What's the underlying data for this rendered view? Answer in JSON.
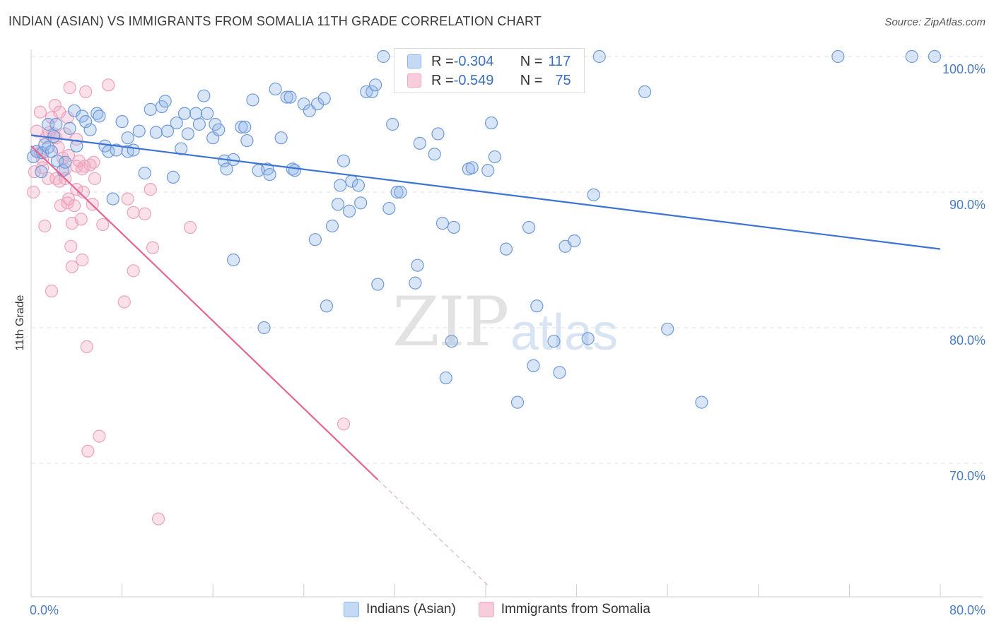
{
  "header": {
    "title": "INDIAN (ASIAN) VS IMMIGRANTS FROM SOMALIA 11TH GRADE CORRELATION CHART",
    "source": "Source: ZipAtlas.com"
  },
  "watermark": {
    "zip": "ZIP",
    "atlas": "atlas"
  },
  "legend": {
    "rows": [
      {
        "r_label": "R = ",
        "r_value": "-0.304",
        "n_label": "N = ",
        "n_value": "117",
        "color": "#8fb4e8"
      },
      {
        "r_label": "R = ",
        "r_value": "-0.549",
        "n_label": "N = ",
        "n_value": "75",
        "color": "#f2a8c1"
      }
    ]
  },
  "bottom_legend": {
    "series1": "Indians (Asian)",
    "series2": "Immigrants from Somalia"
  },
  "chart_data": {
    "type": "scatter",
    "ylabel": "11th Grade",
    "xlim": [
      0,
      80
    ],
    "ylim": [
      60,
      100
    ],
    "x_tick_labels": [
      "0.0%",
      "80.0%"
    ],
    "y_tick_labels": [
      "100.0%",
      "90.0%",
      "80.0%",
      "70.0%"
    ],
    "y_ticks": [
      100,
      90,
      80,
      70
    ],
    "grid": "horizontal dashed",
    "series": [
      {
        "name": "Indians (Asian)",
        "color": "#4a7fd4",
        "trend": {
          "x": [
            0,
            80
          ],
          "y": [
            94.2,
            85.8
          ]
        },
        "points": [
          [
            0.2,
            92.6
          ],
          [
            0.5,
            93.0
          ],
          [
            0.9,
            91.5
          ],
          [
            1.0,
            92.9
          ],
          [
            1.2,
            93.5
          ],
          [
            1.5,
            93.3
          ],
          [
            1.5,
            95.0
          ],
          [
            1.8,
            93.0
          ],
          [
            2.0,
            94.1
          ],
          [
            2.2,
            95.0
          ],
          [
            2.3,
            92.3
          ],
          [
            2.8,
            91.6
          ],
          [
            3.0,
            92.2
          ],
          [
            3.4,
            94.7
          ],
          [
            3.8,
            96.0
          ],
          [
            4.0,
            93.4
          ],
          [
            4.5,
            95.6
          ],
          [
            4.8,
            95.2
          ],
          [
            5.2,
            94.6
          ],
          [
            5.8,
            95.8
          ],
          [
            6.0,
            95.6
          ],
          [
            6.5,
            93.4
          ],
          [
            6.8,
            93.0
          ],
          [
            7.2,
            89.5
          ],
          [
            7.5,
            93.1
          ],
          [
            8.0,
            95.2
          ],
          [
            8.5,
            93.0
          ],
          [
            8.5,
            94.0
          ],
          [
            9.0,
            93.1
          ],
          [
            9.5,
            94.5
          ],
          [
            10.0,
            91.4
          ],
          [
            10.5,
            96.1
          ],
          [
            11.0,
            94.4
          ],
          [
            11.5,
            96.3
          ],
          [
            11.8,
            96.7
          ],
          [
            12.0,
            94.5
          ],
          [
            12.5,
            91.1
          ],
          [
            12.8,
            95.1
          ],
          [
            13.2,
            93.2
          ],
          [
            13.5,
            95.8
          ],
          [
            13.8,
            94.3
          ],
          [
            14.5,
            95.8
          ],
          [
            14.8,
            95.0
          ],
          [
            15.2,
            97.1
          ],
          [
            15.5,
            95.8
          ],
          [
            16.0,
            94.0
          ],
          [
            16.2,
            95.0
          ],
          [
            16.5,
            94.6
          ],
          [
            17.0,
            92.3
          ],
          [
            17.2,
            91.7
          ],
          [
            17.8,
            92.4
          ],
          [
            17.8,
            85.0
          ],
          [
            18.5,
            94.8
          ],
          [
            18.8,
            94.8
          ],
          [
            19.0,
            93.8
          ],
          [
            19.5,
            96.8
          ],
          [
            20.0,
            91.6
          ],
          [
            20.5,
            80.0
          ],
          [
            20.8,
            91.7
          ],
          [
            21.0,
            91.3
          ],
          [
            21.5,
            97.6
          ],
          [
            22.0,
            94.0
          ],
          [
            22.5,
            97.0
          ],
          [
            22.8,
            97.0
          ],
          [
            23.0,
            91.7
          ],
          [
            23.2,
            91.6
          ],
          [
            24.0,
            96.5
          ],
          [
            24.5,
            96.0
          ],
          [
            25.0,
            86.5
          ],
          [
            25.2,
            96.5
          ],
          [
            25.8,
            96.9
          ],
          [
            26.0,
            81.6
          ],
          [
            26.5,
            87.5
          ],
          [
            27.0,
            89.1
          ],
          [
            27.2,
            90.5
          ],
          [
            27.5,
            92.3
          ],
          [
            28.0,
            88.6
          ],
          [
            28.2,
            90.8
          ],
          [
            28.8,
            90.5
          ],
          [
            29.0,
            89.2
          ],
          [
            29.5,
            97.4
          ],
          [
            30.0,
            97.4
          ],
          [
            30.3,
            97.9
          ],
          [
            30.5,
            83.2
          ],
          [
            31.0,
            100.0
          ],
          [
            31.5,
            88.8
          ],
          [
            31.8,
            95.0
          ],
          [
            32.2,
            90.0
          ],
          [
            32.5,
            90.0
          ],
          [
            33.8,
            83.3
          ],
          [
            34.0,
            84.6
          ],
          [
            34.2,
            93.6
          ],
          [
            35.5,
            92.8
          ],
          [
            35.8,
            94.3
          ],
          [
            36.2,
            87.7
          ],
          [
            36.5,
            76.3
          ],
          [
            37.0,
            79.0
          ],
          [
            37.2,
            87.4
          ],
          [
            38.5,
            91.7
          ],
          [
            38.8,
            91.8
          ],
          [
            40.2,
            91.6
          ],
          [
            40.5,
            95.1
          ],
          [
            40.8,
            92.6
          ],
          [
            41.8,
            85.8
          ],
          [
            42.8,
            74.5
          ],
          [
            43.8,
            87.4
          ],
          [
            44.2,
            77.2
          ],
          [
            44.5,
            81.6
          ],
          [
            46.0,
            79.0
          ],
          [
            46.5,
            76.7
          ],
          [
            47.0,
            86.0
          ],
          [
            47.8,
            86.4
          ],
          [
            49.0,
            79.2
          ],
          [
            49.5,
            89.8
          ],
          [
            50.0,
            100.0
          ],
          [
            54.0,
            97.4
          ],
          [
            56.0,
            79.9
          ],
          [
            59.0,
            74.5
          ],
          [
            71.0,
            100.0
          ],
          [
            77.5,
            100.0
          ],
          [
            79.5,
            100.0
          ]
        ]
      },
      {
        "name": "Immigrants from Somalia",
        "color": "#e46592",
        "trend": {
          "x": [
            0,
            30.5
          ],
          "y": [
            93.4,
            68.8
          ]
        },
        "trend_dashed": {
          "x": [
            30.5,
            40.2
          ],
          "y": [
            68.8,
            61.0
          ]
        },
        "points": [
          [
            0.2,
            90.0
          ],
          [
            0.3,
            91.5
          ],
          [
            0.5,
            94.5
          ],
          [
            0.5,
            93.0
          ],
          [
            0.8,
            95.9
          ],
          [
            0.8,
            92.9
          ],
          [
            1.0,
            92.4
          ],
          [
            1.0,
            91.8
          ],
          [
            1.2,
            87.5
          ],
          [
            1.3,
            94.0
          ],
          [
            1.5,
            91.0
          ],
          [
            1.6,
            94.4
          ],
          [
            1.8,
            82.7
          ],
          [
            1.8,
            95.5
          ],
          [
            2.0,
            94.3
          ],
          [
            2.1,
            96.4
          ],
          [
            2.2,
            94.0
          ],
          [
            2.2,
            91.0
          ],
          [
            2.4,
            93.3
          ],
          [
            2.5,
            95.9
          ],
          [
            2.5,
            90.8
          ],
          [
            2.6,
            89.0
          ],
          [
            2.8,
            92.5
          ],
          [
            3.0,
            91.0
          ],
          [
            3.0,
            94.3
          ],
          [
            3.0,
            91.7
          ],
          [
            3.2,
            89.2
          ],
          [
            3.2,
            95.5
          ],
          [
            3.3,
            89.5
          ],
          [
            3.3,
            92.7
          ],
          [
            3.4,
            97.7
          ],
          [
            3.5,
            86.0
          ],
          [
            3.6,
            84.5
          ],
          [
            3.6,
            87.7
          ],
          [
            3.8,
            89.0
          ],
          [
            4.0,
            93.9
          ],
          [
            4.0,
            91.9
          ],
          [
            4.0,
            90.2
          ],
          [
            4.2,
            92.3
          ],
          [
            4.4,
            88.0
          ],
          [
            4.5,
            91.7
          ],
          [
            4.5,
            85.0
          ],
          [
            4.6,
            90.0
          ],
          [
            4.7,
            91.9
          ],
          [
            4.8,
            97.4
          ],
          [
            4.9,
            78.6
          ],
          [
            5.0,
            70.9
          ],
          [
            5.2,
            92.0
          ],
          [
            5.4,
            89.1
          ],
          [
            5.5,
            92.2
          ],
          [
            5.6,
            91.0
          ],
          [
            6.0,
            72.0
          ],
          [
            6.3,
            87.6
          ],
          [
            6.8,
            97.9
          ],
          [
            8.2,
            81.9
          ],
          [
            8.5,
            89.5
          ],
          [
            9.0,
            84.2
          ],
          [
            9.0,
            88.5
          ],
          [
            10.0,
            88.4
          ],
          [
            10.5,
            90.2
          ],
          [
            10.7,
            85.9
          ],
          [
            11.2,
            65.9
          ],
          [
            14.0,
            87.4
          ],
          [
            27.5,
            72.9
          ]
        ]
      }
    ]
  }
}
